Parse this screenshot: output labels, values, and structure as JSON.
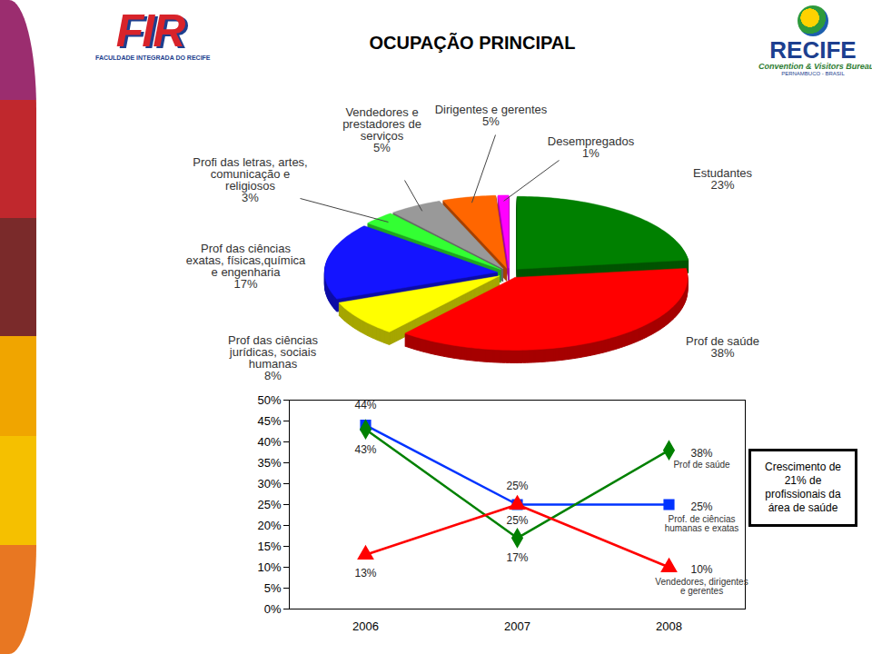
{
  "logos": [
    {
      "text": "FIR",
      "subtitle": "FACULDADE INTEGRADA DO RECIFE"
    },
    {
      "text": "RECIFE",
      "subtitle": "Convention & Visitors Bureau",
      "caption": "PERNAMBUCO - BRASIL"
    }
  ],
  "chart_data": [
    {
      "type": "pie",
      "title": "OCUPAÇÃO PRINCIPAL",
      "categories": [
        "Estudantes",
        "Prof de saúde",
        "Prof das ciências\njurídicas, sociais\nhumanas",
        "Prof das ciências\nexatas, físicas,química\ne engenharia",
        "Profi das letras, artes,\ncomunicação e\nreligiosos",
        "Vendedores e\nprestadores de\nserviços",
        "Dirigentes e gerentes",
        "Desempregados"
      ],
      "values": [
        23,
        38,
        8,
        17,
        3,
        5,
        5,
        1
      ],
      "value_labels": [
        "23%",
        "38%",
        "8%",
        "17%",
        "3%",
        "5%",
        "5%",
        "1%"
      ],
      "colors": [
        "#008000",
        "#ff0000",
        "#ffff00",
        "#1414ff",
        "#33ff33",
        "#999999",
        "#ff6600",
        "#ff00ff"
      ],
      "data_labels": true
    },
    {
      "type": "line",
      "categories": [
        "2006",
        "2007",
        "2008"
      ],
      "series": [
        {
          "name": "Prof. de ciências\nhumanas e exatas",
          "color": "#0033ff",
          "marker": "square",
          "values": [
            44,
            25,
            25
          ],
          "value_labels": [
            "44%",
            "25%",
            "25%"
          ]
        },
        {
          "name": "Prof de saúde",
          "color": "#008000",
          "marker": "diamond",
          "values": [
            43,
            17,
            38
          ],
          "value_labels": [
            "43%",
            "17%",
            "38%"
          ]
        },
        {
          "name": "Vendedores, dirigentes\ne gerentes",
          "color": "#ff0000",
          "marker": "triangle",
          "values": [
            13,
            25,
            10
          ],
          "value_labels": [
            "13%",
            "25%",
            "10%"
          ]
        }
      ],
      "ylim": [
        0,
        50
      ],
      "yticks": [
        {
          "value": 0,
          "label": "0%"
        },
        {
          "value": 5,
          "label": "5%"
        },
        {
          "value": 10,
          "label": "10%"
        },
        {
          "value": 15,
          "label": "15%"
        },
        {
          "value": 20,
          "label": "20%"
        },
        {
          "value": 25,
          "label": "25%"
        },
        {
          "value": 30,
          "label": "30%"
        },
        {
          "value": 35,
          "label": "35%"
        },
        {
          "value": 40,
          "label": "40%"
        },
        {
          "value": 45,
          "label": "45%"
        },
        {
          "value": 50,
          "label": "50%"
        }
      ],
      "grid": false,
      "data_labels": true,
      "annotations": [
        "Crescimento de 21% de profissionais da área de saúde"
      ]
    }
  ]
}
